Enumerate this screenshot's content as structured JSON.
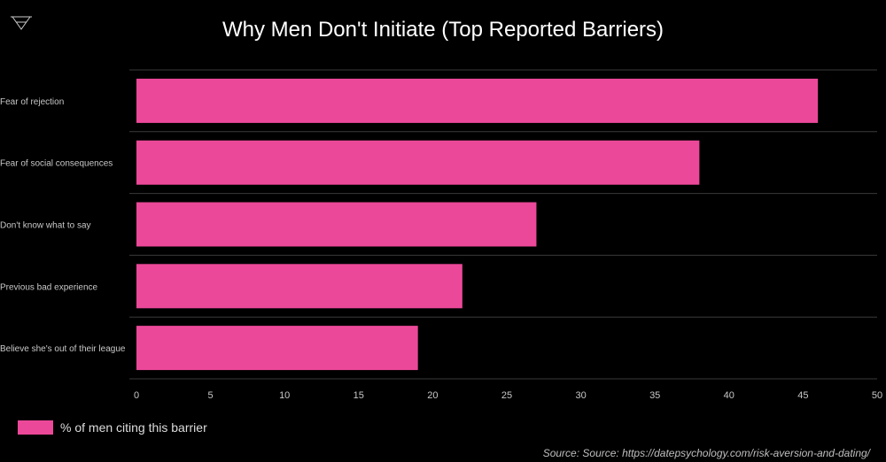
{
  "logo": {
    "icon": "triangle-down-icon"
  },
  "chart_data": {
    "type": "bar",
    "orientation": "horizontal",
    "title": "Why Men Don't Initiate (Top Reported Barriers)",
    "categories": [
      "Fear of rejection",
      "Fear of social consequences",
      "Don't know what to say",
      "Previous bad experience",
      "Believe she's out of their league"
    ],
    "series": [
      {
        "name": "% of men citing this barrier",
        "values": [
          46,
          38,
          27,
          22,
          19
        ]
      }
    ],
    "xlim": [
      0,
      50
    ],
    "xticks": [
      0,
      5,
      10,
      15,
      20,
      25,
      30,
      35,
      40,
      45,
      50
    ],
    "grid": true,
    "legend_position": "bottom-left",
    "bar_color": "#ec4899",
    "background": "#000000"
  },
  "source": "Source: Source: https://datepsychology.com/risk-aversion-and-dating/"
}
